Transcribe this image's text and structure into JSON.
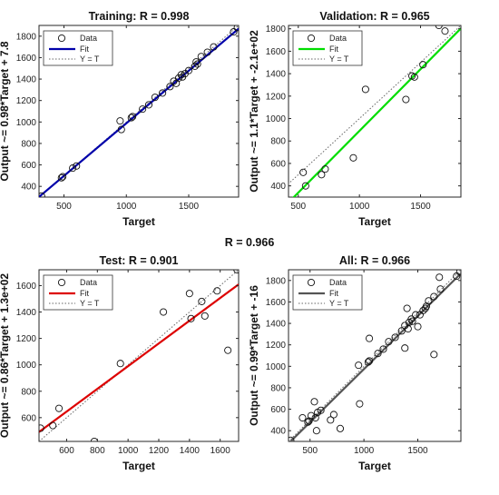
{
  "figure": {
    "overall_title": "R = 0.966"
  },
  "chart_data": [
    {
      "type": "scatter",
      "title": "Training:  R = 0.998",
      "xlabel": "Target",
      "ylabel": "Output ~= 0.98*Target + 7.8",
      "xlim": [
        300,
        1900
      ],
      "ylim": [
        300,
        1900
      ],
      "xticks": [
        500,
        1000,
        1500
      ],
      "yticks": [
        400,
        600,
        800,
        1000,
        1200,
        1400,
        1600,
        1800
      ],
      "fit": {
        "slope": 0.98,
        "intercept": 7.8,
        "color": "#0000aa"
      },
      "legend": [
        "Data",
        "Fit",
        "Y = T"
      ],
      "points": {
        "x": [
          320,
          480,
          490,
          570,
          600,
          950,
          960,
          1040,
          1050,
          1130,
          1180,
          1230,
          1290,
          1350,
          1380,
          1400,
          1420,
          1440,
          1450,
          1470,
          1500,
          1550,
          1560,
          1570,
          1600,
          1650,
          1700,
          1860,
          1890
        ],
        "y": [
          310,
          480,
          490,
          570,
          590,
          1010,
          930,
          1040,
          1050,
          1120,
          1160,
          1230,
          1270,
          1330,
          1380,
          1360,
          1410,
          1440,
          1420,
          1450,
          1480,
          1520,
          1560,
          1540,
          1610,
          1650,
          1700,
          1840,
          1880
        ]
      }
    },
    {
      "type": "scatter",
      "title": "Validation: R = 0.965",
      "xlabel": "Target",
      "ylabel": "Output ~= 1.1*Target + -2.1e+02",
      "xlim": [
        420,
        1830
      ],
      "ylim": [
        300,
        1830
      ],
      "xticks": [
        500,
        1000,
        1500
      ],
      "yticks": [
        400,
        600,
        800,
        1000,
        1200,
        1400,
        1600,
        1800
      ],
      "fit": {
        "slope": 1.1,
        "intercept": -210,
        "color": "#00dd00"
      },
      "legend": [
        "Data",
        "Fit",
        "Y = T"
      ],
      "points": {
        "x": [
          540,
          560,
          690,
          720,
          950,
          1050,
          1380,
          1430,
          1450,
          1520,
          1650,
          1700
        ],
        "y": [
          520,
          400,
          500,
          550,
          650,
          1260,
          1170,
          1380,
          1370,
          1480,
          1830,
          1780
        ]
      }
    },
    {
      "type": "scatter",
      "title": "Test:  R = 0.901",
      "xlabel": "Target",
      "ylabel": "Output ~= 0.86*Target + 1.3e+02",
      "xlim": [
        420,
        1720
      ],
      "ylim": [
        420,
        1720
      ],
      "xticks": [
        600,
        800,
        1000,
        1200,
        1400,
        1600
      ],
      "yticks": [
        600,
        800,
        1000,
        1200,
        1400,
        1600
      ],
      "fit": {
        "slope": 0.86,
        "intercept": 130,
        "color": "#dd0000"
      },
      "legend": [
        "Data",
        "Fit",
        "Y = T"
      ],
      "points": {
        "x": [
          430,
          510,
          550,
          780,
          950,
          1230,
          1400,
          1410,
          1480,
          1500,
          1580,
          1650,
          1710
        ],
        "y": [
          520,
          540,
          670,
          420,
          1010,
          1400,
          1540,
          1350,
          1480,
          1370,
          1560,
          1110,
          1720
        ]
      }
    },
    {
      "type": "scatter",
      "title": "All: R = 0.966",
      "xlabel": "Target",
      "ylabel": "Output ~= 0.99*Target + -16",
      "xlim": [
        300,
        1900
      ],
      "ylim": [
        300,
        1900
      ],
      "xticks": [
        500,
        1000,
        1500
      ],
      "yticks": [
        400,
        600,
        800,
        1000,
        1200,
        1400,
        1600,
        1800
      ],
      "fit": {
        "slope": 0.99,
        "intercept": -16,
        "color": "#555555"
      },
      "legend": [
        "Data",
        "Fit",
        "Y = T"
      ],
      "points": {
        "x": [
          320,
          430,
          480,
          490,
          510,
          540,
          550,
          560,
          570,
          600,
          690,
          720,
          780,
          950,
          960,
          1040,
          1050,
          1050,
          1130,
          1180,
          1230,
          1290,
          1350,
          1380,
          1380,
          1400,
          1410,
          1420,
          1440,
          1450,
          1480,
          1500,
          1520,
          1550,
          1570,
          1580,
          1600,
          1650,
          1650,
          1700,
          1710,
          1860,
          1890
        ],
        "y": [
          310,
          520,
          480,
          490,
          540,
          670,
          520,
          400,
          570,
          590,
          500,
          550,
          420,
          1010,
          650,
          1040,
          1050,
          1260,
          1120,
          1160,
          1230,
          1270,
          1330,
          1380,
          1170,
          1540,
          1350,
          1410,
          1440,
          1420,
          1480,
          1370,
          1480,
          1520,
          1540,
          1560,
          1610,
          1650,
          1110,
          1830,
          1720,
          1840,
          1880
        ]
      }
    }
  ]
}
